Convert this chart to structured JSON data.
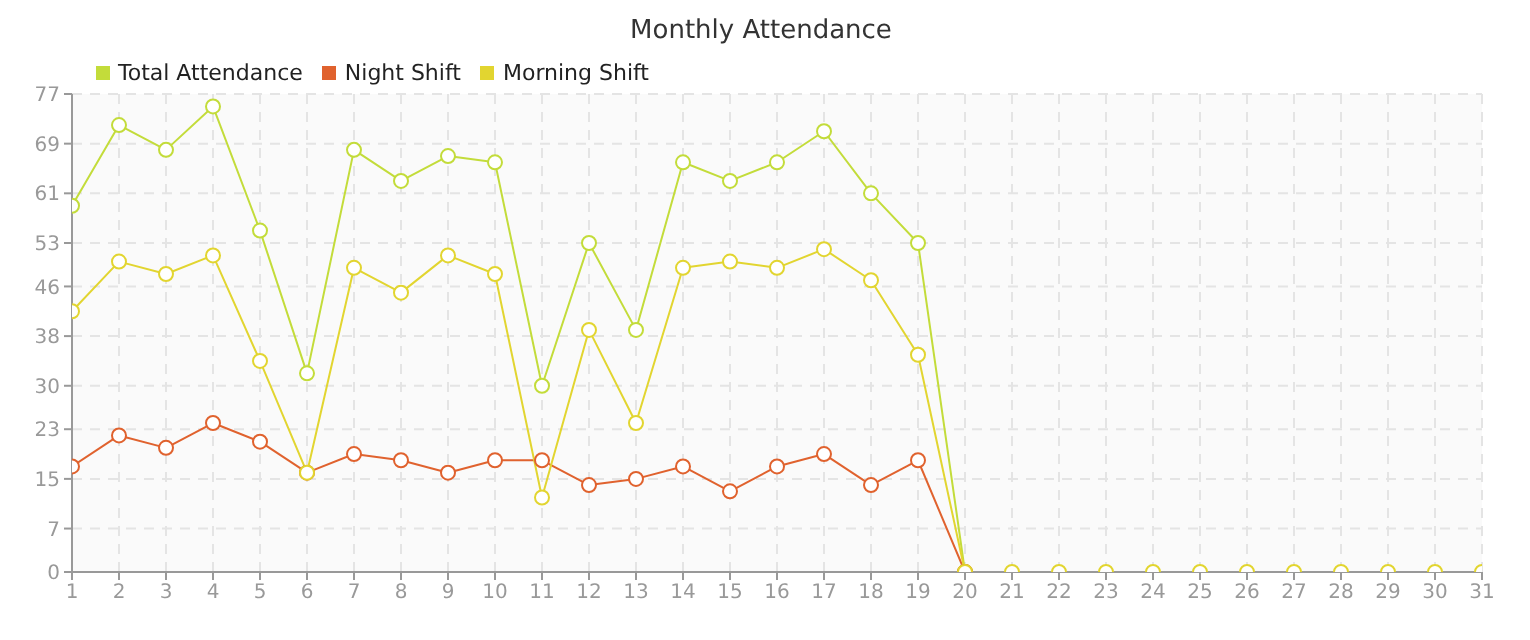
{
  "chart_data": {
    "type": "line",
    "title": "Monthly Attendance",
    "x": [
      1,
      2,
      3,
      4,
      5,
      6,
      7,
      8,
      9,
      10,
      11,
      12,
      13,
      14,
      15,
      16,
      17,
      18,
      19,
      20,
      21,
      22,
      23,
      24,
      25,
      26,
      27,
      28,
      29,
      30,
      31
    ],
    "series": [
      {
        "name": "Total Attendance",
        "color": "#c3dc3a",
        "values": [
          59,
          72,
          68,
          75,
          55,
          32,
          68,
          63,
          67,
          66,
          30,
          53,
          39,
          66,
          63,
          66,
          71,
          61,
          53,
          0,
          null,
          null,
          null,
          null,
          null,
          null,
          null,
          null,
          null,
          null,
          null
        ]
      },
      {
        "name": "Night Shift",
        "color": "#e0622e",
        "values": [
          17,
          22,
          20,
          24,
          21,
          16,
          19,
          18,
          16,
          18,
          18,
          14,
          15,
          17,
          13,
          17,
          19,
          14,
          18,
          0,
          null,
          null,
          null,
          null,
          null,
          null,
          null,
          null,
          null,
          null,
          null
        ]
      },
      {
        "name": "Morning Shift",
        "color": "#e2d530",
        "values": [
          42,
          50,
          48,
          51,
          34,
          16,
          49,
          45,
          51,
          48,
          12,
          39,
          24,
          49,
          50,
          49,
          52,
          47,
          35,
          0,
          0,
          0,
          0,
          0,
          0,
          0,
          0,
          0,
          0,
          0,
          0
        ]
      }
    ],
    "xlim": [
      1,
      31
    ],
    "xticks": [
      1,
      2,
      3,
      4,
      5,
      6,
      7,
      8,
      9,
      10,
      11,
      12,
      13,
      14,
      15,
      16,
      17,
      18,
      19,
      20,
      21,
      22,
      23,
      24,
      25,
      26,
      27,
      28,
      29,
      30,
      31
    ],
    "ylim": [
      0,
      77
    ],
    "yticks": [
      0,
      7,
      15,
      23,
      30,
      38,
      46,
      53,
      61,
      69,
      77
    ],
    "grid": true,
    "legend": "top left",
    "marker": "circle",
    "line_style": "solid"
  }
}
